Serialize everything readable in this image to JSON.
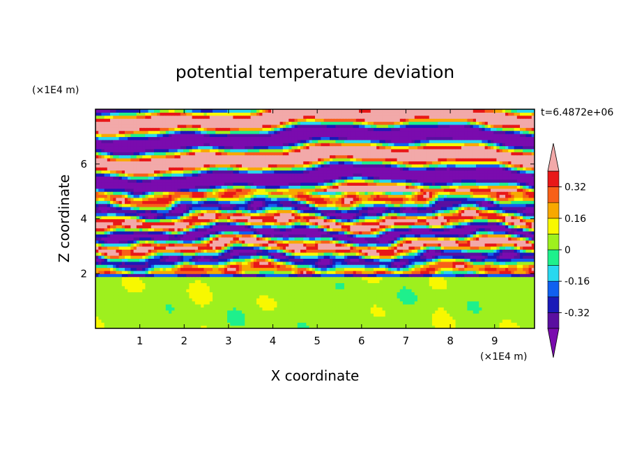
{
  "chart_data": {
    "type": "heatmap",
    "title": "potential temperature deviation",
    "xlabel": "X coordinate",
    "ylabel": "Z coordinate",
    "x_unit": "(×1E4 m)",
    "y_unit": "(×1E4 m)",
    "time_label": "t=6.4872e+06",
    "xlim": [
      0,
      9.9
    ],
    "ylim": [
      0,
      8
    ],
    "x_ticks": [
      1,
      2,
      3,
      4,
      5,
      6,
      7,
      8,
      9
    ],
    "y_ticks": [
      2,
      4,
      6
    ],
    "x_tick_labels": [
      "1",
      "2",
      "3",
      "4",
      "5",
      "6",
      "7",
      "8",
      "9"
    ],
    "y_tick_labels": [
      "2",
      "4",
      "6"
    ],
    "colorbar": {
      "levels": [
        -0.4,
        -0.32,
        -0.24,
        -0.16,
        -0.08,
        0,
        0.08,
        0.16,
        0.24,
        0.32,
        0.4
      ],
      "labeled_levels": [
        -0.32,
        -0.16,
        0,
        0.16,
        0.32
      ],
      "labels": [
        "-0.32",
        "-0.16",
        "0",
        "0.16",
        "0.32"
      ],
      "under_color": "#7a0bae",
      "over_color": "#f2a9a9",
      "colors": [
        "#5a0fa0",
        "#1a1ab8",
        "#1060f0",
        "#28d8f0",
        "#1ef08c",
        "#9ef01e",
        "#f8f800",
        "#f8a800",
        "#f86018",
        "#e81818"
      ]
    },
    "lower_layer": {
      "z_range": [
        0,
        2
      ],
      "dominant_colors": [
        "#1ef08c",
        "#9ef01e"
      ]
    },
    "middle_layer": {
      "z_range": [
        2,
        5
      ]
    },
    "upper_layer": {
      "z_range": [
        5,
        8
      ],
      "dominant_colors": [
        "#7a0bae",
        "#f2a9a9"
      ]
    }
  }
}
